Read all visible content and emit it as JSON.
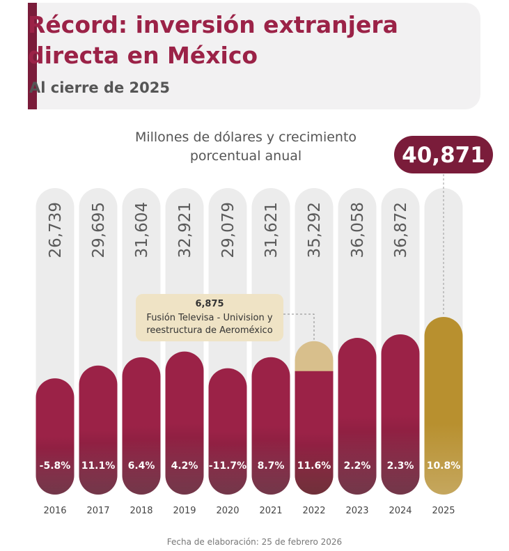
{
  "chart_data": {
    "type": "bar",
    "title": "Récord: inversión extranjera directa en México",
    "subtitle": "Al cierre de 2025",
    "unit_label": "Millones de dólares y crecimiento porcentual anual",
    "categories": [
      "2016",
      "2017",
      "2018",
      "2019",
      "2020",
      "2021",
      "2022",
      "2023",
      "2024",
      "2025"
    ],
    "values": [
      26739,
      29695,
      31604,
      32921,
      29079,
      31621,
      35292,
      36058,
      36872,
      40871
    ],
    "value_labels": [
      "26,739",
      "29,695",
      "31,604",
      "32,921",
      "29,079",
      "31,621",
      "35,292",
      "36,058",
      "36,872",
      "40,871"
    ],
    "growth": {
      "values": [
        -5.8,
        11.1,
        6.4,
        4.2,
        -11.7,
        8.7,
        11.6,
        2.2,
        2.3,
        10.8
      ],
      "value_labels": [
        "-5.8%",
        "11.1%",
        "6.4%",
        "4.2%",
        "-11.7%",
        "8.7%",
        "11.6%",
        "2.2%",
        "2.3%",
        "10.8%"
      ]
    },
    "color": "#9b2247",
    "highlight_color": "#b8902f",
    "annotation": {
      "category": "2022",
      "value": {
        "value": 6875,
        "label": "6,875"
      },
      "note": [
        "Fusión Televisa - Univision y",
        "reestructura de Aeroméxico"
      ],
      "color": "#d8bf8c"
    },
    "footnote": "Fecha de elaboración: 25 de febrero 2026"
  }
}
